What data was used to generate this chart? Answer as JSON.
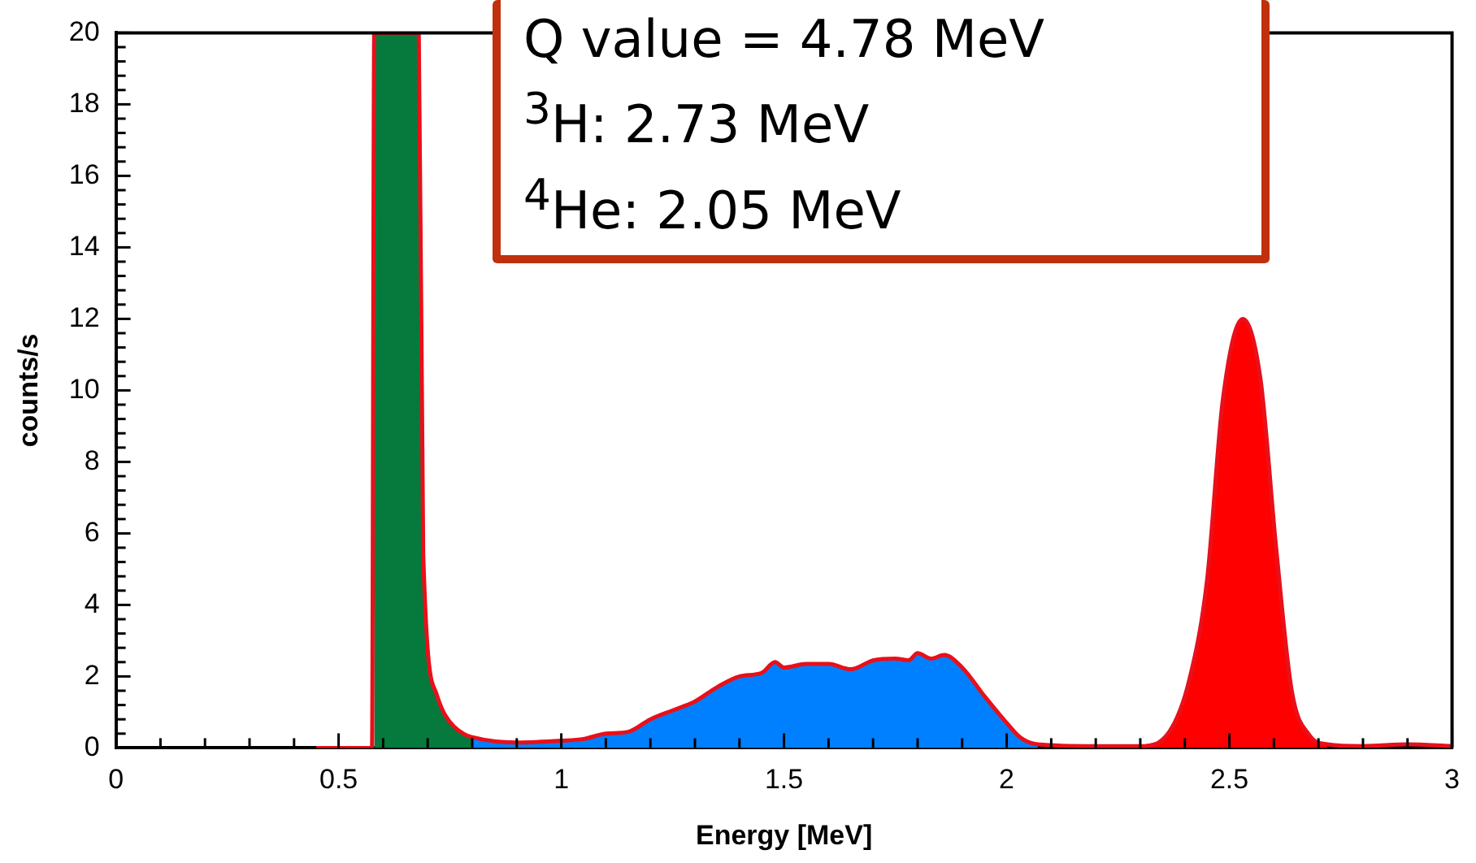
{
  "chart_data": {
    "type": "area",
    "xlabel": "Energy [MeV]",
    "ylabel": "counts/s",
    "annotations": [
      "Q value = 4.78 MeV",
      "$^{3}$H: 2.73 MeV",
      "$^{4}$He: 2.05 MeV"
    ],
    "xlim": [
      0,
      3
    ],
    "ylim": [
      0,
      20
    ],
    "xticks": [
      0,
      {
        "value": 0.1,
        "label": null
      },
      {
        "value": 0.2,
        "label": null
      },
      {
        "value": 0.3,
        "label": null
      },
      {
        "value": 0.4,
        "label": null
      },
      0.5,
      {
        "value": 0.6,
        "label": null
      },
      {
        "value": 0.7,
        "label": null
      },
      {
        "value": 0.8,
        "label": null
      },
      {
        "value": 0.9,
        "label": null
      },
      1,
      {
        "value": 1.1,
        "label": null
      },
      {
        "value": 1.2,
        "label": null
      },
      {
        "value": 1.3,
        "label": null
      },
      {
        "value": 1.4,
        "label": null
      },
      1.5,
      {
        "value": 1.6,
        "label": null
      },
      {
        "value": 1.7,
        "label": null
      },
      {
        "value": 1.8,
        "label": null
      },
      {
        "value": 1.9,
        "label": null
      },
      2,
      {
        "value": 2.1,
        "label": null
      },
      {
        "value": 2.2,
        "label": null
      },
      {
        "value": 2.3,
        "label": null
      },
      {
        "value": 2.4,
        "label": null
      },
      2.5,
      {
        "value": 2.6,
        "label": null
      },
      {
        "value": 2.7,
        "label": null
      },
      {
        "value": 2.8,
        "label": null
      },
      {
        "value": 2.9,
        "label": null
      },
      3
    ],
    "yticks": [
      0,
      {
        "value": 0.4,
        "label": null
      },
      {
        "value": 0.8,
        "label": null
      },
      {
        "value": 1.2,
        "label": null
      },
      {
        "value": 1.6,
        "label": null
      },
      2,
      {
        "value": 2.4,
        "label": null
      },
      {
        "value": 2.8,
        "label": null
      },
      {
        "value": 3.2,
        "label": null
      },
      {
        "value": 3.6,
        "label": null
      },
      4,
      {
        "value": 4.4,
        "label": null
      },
      {
        "value": 4.8,
        "label": null
      },
      {
        "value": 5.2,
        "label": null
      },
      {
        "value": 5.6,
        "label": null
      },
      6,
      {
        "value": 6.4,
        "label": null
      },
      {
        "value": 6.8,
        "label": null
      },
      {
        "value": 7.2,
        "label": null
      },
      {
        "value": 7.6,
        "label": null
      },
      8,
      {
        "value": 8.4,
        "label": null
      },
      {
        "value": 8.8,
        "label": null
      },
      {
        "value": 9.2,
        "label": null
      },
      {
        "value": 9.6,
        "label": null
      },
      10,
      {
        "value": 10.4,
        "label": null
      },
      {
        "value": 10.8,
        "label": null
      },
      {
        "value": 11.2,
        "label": null
      },
      {
        "value": 11.6,
        "label": null
      },
      12,
      {
        "value": 12.4,
        "label": null
      },
      {
        "value": 12.8,
        "label": null
      },
      {
        "value": 13.2,
        "label": null
      },
      {
        "value": 13.6,
        "label": null
      },
      14,
      {
        "value": 14.4,
        "label": null
      },
      {
        "value": 14.8,
        "label": null
      },
      {
        "value": 15.2,
        "label": null
      },
      {
        "value": 15.6,
        "label": null
      },
      16,
      {
        "value": 16.4,
        "label": null
      },
      {
        "value": 16.8,
        "label": null
      },
      {
        "value": 17.2,
        "label": null
      },
      {
        "value": 17.6,
        "label": null
      },
      18,
      {
        "value": 18.4,
        "label": null
      },
      {
        "value": 18.8,
        "label": null
      },
      {
        "value": 19.2,
        "label": null
      },
      {
        "value": 19.6,
        "label": null
      },
      20
    ],
    "series": [
      {
        "type": "area",
        "color": "#067a3c",
        "x": [
          0.58,
          0.68,
          0.69,
          0.72,
          0.74,
          0.78,
          0.8
        ],
        "values": [
          20,
          20,
          5.4,
          1.5,
          0.9,
          0.4,
          0.3
        ]
      },
      {
        "type": "area",
        "color": "#0080ff",
        "x": [
          0.8,
          0.9,
          1.0,
          1.05,
          1.1,
          1.15,
          1.2,
          1.25,
          1.3,
          1.35,
          1.4,
          1.45,
          1.48,
          1.5,
          1.55,
          1.6,
          1.65,
          1.7,
          1.75,
          1.78,
          1.8,
          1.83,
          1.86,
          1.9,
          1.95,
          2.0,
          2.03,
          2.07
        ],
        "values": [
          0.3,
          0.15,
          0.2,
          0.25,
          0.4,
          0.45,
          0.8,
          1.05,
          1.3,
          1.7,
          2.0,
          2.1,
          2.4,
          2.25,
          2.35,
          2.35,
          2.2,
          2.45,
          2.5,
          2.45,
          2.65,
          2.5,
          2.6,
          2.25,
          1.45,
          0.7,
          0.3,
          0.1
        ]
      },
      {
        "type": "area",
        "color": "#ff0000",
        "x": [
          2.3,
          2.365,
          2.41,
          2.45,
          2.485,
          2.53,
          2.57,
          2.605,
          2.64,
          2.68,
          2.72
        ],
        "values": [
          0.05,
          0.45,
          1.9,
          4.7,
          9.7,
          12.0,
          10.3,
          5.6,
          1.6,
          0.35,
          0.1
        ]
      },
      {
        "type": "line",
        "color": "#e8101a",
        "x": [
          0.45,
          0.575,
          0.58,
          0.68,
          0.69,
          0.72,
          0.74,
          0.78,
          0.8,
          0.9,
          1.0,
          1.05,
          1.1,
          1.15,
          1.2,
          1.25,
          1.3,
          1.35,
          1.4,
          1.45,
          1.48,
          1.5,
          1.55,
          1.6,
          1.65,
          1.7,
          1.75,
          1.78,
          1.8,
          1.83,
          1.86,
          1.9,
          1.95,
          2.0,
          2.03,
          2.07,
          2.2,
          2.3,
          2.365,
          2.41,
          2.45,
          2.485,
          2.53,
          2.57,
          2.605,
          2.64,
          2.68,
          2.72,
          2.8,
          2.9,
          3.0
        ],
        "values": [
          0,
          0,
          20,
          20,
          5.4,
          1.5,
          0.9,
          0.4,
          0.3,
          0.15,
          0.2,
          0.25,
          0.4,
          0.45,
          0.8,
          1.05,
          1.3,
          1.7,
          2.0,
          2.1,
          2.4,
          2.25,
          2.35,
          2.35,
          2.2,
          2.45,
          2.5,
          2.45,
          2.65,
          2.5,
          2.6,
          2.25,
          1.45,
          0.7,
          0.3,
          0.1,
          0.05,
          0.05,
          0.45,
          1.9,
          4.7,
          9.7,
          12.0,
          10.3,
          5.6,
          1.6,
          0.35,
          0.1,
          0.05,
          0.1,
          0.05
        ]
      }
    ]
  }
}
